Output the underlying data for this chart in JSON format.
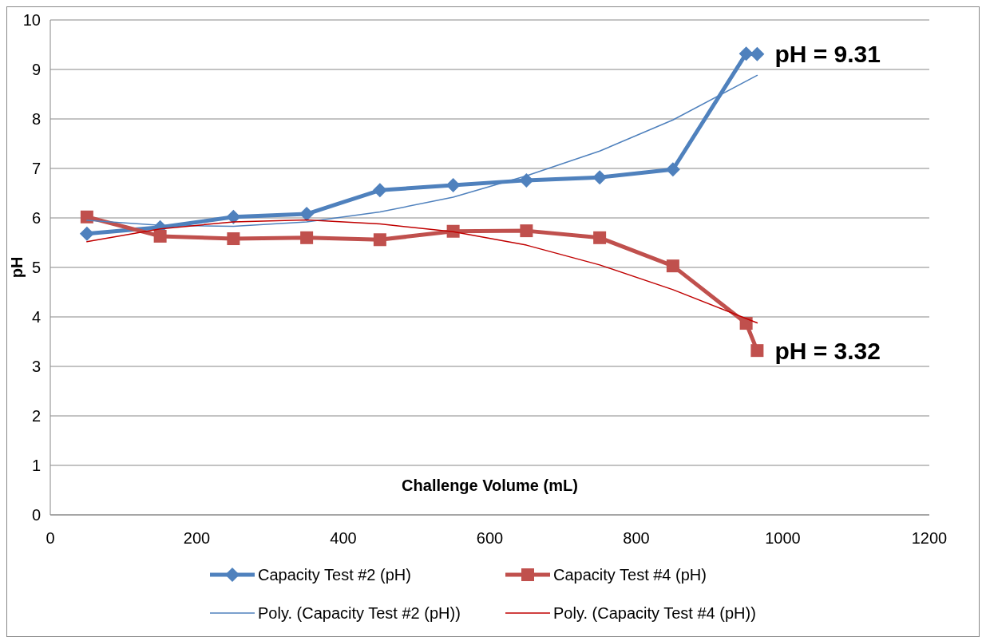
{
  "chart_data": {
    "type": "line",
    "xlabel": "Challenge Volume (mL)",
    "ylabel": "pH",
    "xlim": [
      0,
      1200
    ],
    "xticks": [
      0,
      200,
      400,
      600,
      800,
      1000,
      1200
    ],
    "ylim": [
      0,
      10
    ],
    "yticks": [
      0,
      1,
      2,
      3,
      4,
      5,
      6,
      7,
      8,
      9,
      10
    ],
    "grid": "y",
    "legend": "bottom",
    "line_style": "solid",
    "series": [
      {
        "name": "Capacity Test #2 (pH)",
        "color": "#4f81bd",
        "marker": "diamond",
        "x": [
          50,
          150,
          250,
          350,
          450,
          550,
          650,
          750,
          850,
          950,
          965
        ],
        "values": [
          5.68,
          5.81,
          6.02,
          6.08,
          6.56,
          6.66,
          6.76,
          6.82,
          6.98,
          9.32,
          9.31
        ]
      },
      {
        "name": "Capacity Test #4 (pH)",
        "color": "#c0504d",
        "marker": "square",
        "x": [
          50,
          150,
          250,
          350,
          450,
          550,
          650,
          750,
          850,
          950,
          965
        ],
        "values": [
          6.02,
          5.63,
          5.58,
          5.6,
          5.56,
          5.73,
          5.74,
          5.6,
          5.03,
          3.87,
          3.32
        ]
      },
      {
        "name": "Poly. (Capacity Test #2 (pH))",
        "color": "#4f81bd",
        "marker": "none",
        "x": [
          50,
          150,
          250,
          350,
          450,
          550,
          650,
          750,
          850,
          965
        ],
        "values": [
          5.95,
          5.85,
          5.83,
          5.92,
          6.12,
          6.42,
          6.85,
          7.35,
          7.98,
          8.88
        ]
      },
      {
        "name": "Poly. (Capacity Test #4 (pH))",
        "color": "#c00000",
        "marker": "none",
        "x": [
          50,
          150,
          250,
          350,
          450,
          550,
          650,
          750,
          850,
          965
        ],
        "values": [
          5.52,
          5.78,
          5.92,
          5.96,
          5.88,
          5.72,
          5.45,
          5.05,
          4.55,
          3.88
        ]
      }
    ],
    "annotations": [
      {
        "text": "pH = 9.31",
        "x": 965,
        "y": 9.31
      },
      {
        "text": "pH = 3.32",
        "x": 965,
        "y": 3.32
      }
    ]
  }
}
